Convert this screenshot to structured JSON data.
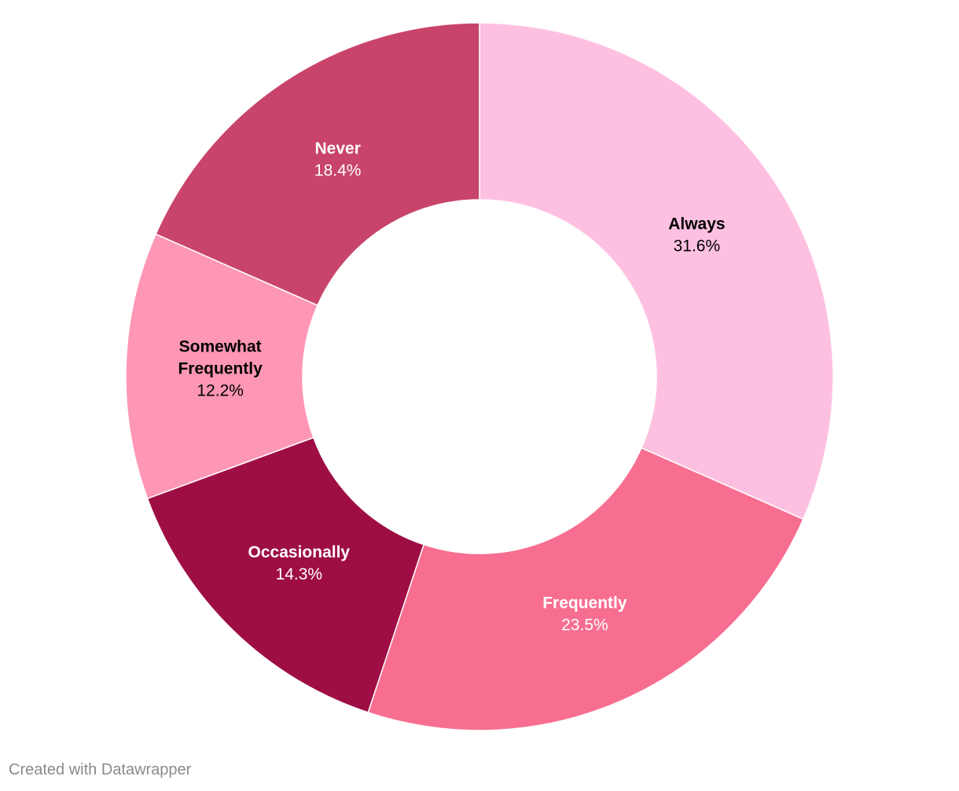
{
  "chart_data": {
    "type": "pie",
    "subtype": "donut",
    "title": "",
    "slices": [
      {
        "label": "Always",
        "value": 31.6,
        "display": "31.6%",
        "color": "#fec0e0",
        "text_color": "#000000"
      },
      {
        "label": "Frequently",
        "value": 23.5,
        "display": "23.5%",
        "color": "#f76e90",
        "text_color": "#ffffff"
      },
      {
        "label": "Occasionally",
        "value": 14.3,
        "display": "14.3%",
        "color": "#9e0e45",
        "text_color": "#ffffff"
      },
      {
        "label": "Somewhat Frequently",
        "label_lines": [
          "Somewhat",
          "Frequently"
        ],
        "value": 12.2,
        "display": "12.2%",
        "color": "#fe96b5",
        "text_color": "#000000"
      },
      {
        "label": "Never",
        "value": 18.4,
        "display": "18.4%",
        "color": "#c8446a",
        "text_color": "#ffffff"
      }
    ],
    "start": "12 o'clock",
    "direction": "clockwise",
    "legend": "none"
  },
  "footer": {
    "credit": "Created with Datawrapper"
  }
}
